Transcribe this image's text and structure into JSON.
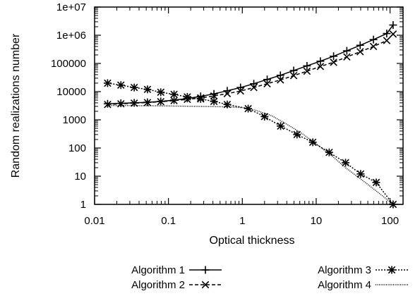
{
  "chart_data": {
    "type": "line",
    "xscale": "log",
    "yscale": "log",
    "xlim": [
      0.01,
      150
    ],
    "ylim": [
      1,
      10000000
    ],
    "xlabel": "Optical thickness",
    "ylabel": "Random realizations number",
    "grid": false,
    "legend_position": "bottom",
    "xticks": [
      {
        "value": 0.01,
        "label": "0.01"
      },
      {
        "value": 0.1,
        "label": "0.1"
      },
      {
        "value": 1,
        "label": "1"
      },
      {
        "value": 10,
        "label": "10"
      },
      {
        "value": 100,
        "label": "100"
      }
    ],
    "yticks": [
      {
        "value": 1,
        "label": "1"
      },
      {
        "value": 10,
        "label": "10"
      },
      {
        "value": 100,
        "label": "100"
      },
      {
        "value": 1000,
        "label": "1000"
      },
      {
        "value": 10000,
        "label": "10000"
      },
      {
        "value": 100000,
        "label": "100000"
      },
      {
        "value": 1000000,
        "label": "1e+06"
      },
      {
        "value": 10000000,
        "label": "1e+07"
      }
    ],
    "series": [
      {
        "name": "Algorithm 1",
        "line": "solid",
        "marker": "plus",
        "x": [
          0.015,
          0.0227,
          0.0344,
          0.052,
          0.0787,
          0.119,
          0.18,
          0.273,
          0.413,
          0.625,
          0.946,
          1.43,
          2.17,
          3.28,
          4.96,
          7.51,
          11.4,
          17.2,
          26.0,
          39.4,
          59.6,
          90.2,
          110
        ],
        "y": [
          3700,
          3850,
          4000,
          4200,
          4500,
          5000,
          5700,
          6800,
          8300,
          10700,
          14000,
          19000,
          27000,
          38000,
          56000,
          82000,
          120000,
          180000,
          280000,
          440000,
          700000,
          1150000,
          2300000
        ]
      },
      {
        "name": "Algorithm 2",
        "line": "dashed",
        "marker": "x",
        "x": [
          0.015,
          0.0227,
          0.0344,
          0.052,
          0.0787,
          0.119,
          0.18,
          0.273,
          0.413,
          0.625,
          0.946,
          1.43,
          2.17,
          3.28,
          4.96,
          7.51,
          11.4,
          17.2,
          26.0,
          39.4,
          59.6,
          90.2,
          110
        ],
        "y": [
          3500,
          3700,
          3900,
          4100,
          4400,
          4800,
          5300,
          6000,
          7000,
          8500,
          10500,
          14000,
          19000,
          26000,
          37000,
          53000,
          78000,
          110000,
          170000,
          260000,
          400000,
          650000,
          1100000
        ]
      },
      {
        "name": "Algorithm 3",
        "line": "dotted",
        "marker": "star",
        "x": [
          0.015,
          0.0227,
          0.0344,
          0.052,
          0.0787,
          0.119,
          0.18,
          0.273,
          0.413,
          0.625,
          1.2,
          2.0,
          3.3,
          5.5,
          9.0,
          15.0,
          25.0,
          40.0,
          65.0,
          110
        ],
        "y": [
          20000,
          17000,
          14000,
          12000,
          9500,
          8000,
          6500,
          5500,
          4500,
          3500,
          2500,
          1300,
          600,
          300,
          160,
          70,
          30,
          12,
          6,
          1
        ]
      },
      {
        "name": "Algorithm 4",
        "line": "fine-dotted",
        "marker": "none",
        "x": [
          0.015,
          0.03,
          0.06,
          0.1,
          0.2,
          0.35,
          0.6,
          1.0,
          1.5,
          2.5,
          4.0,
          6.5,
          10.0,
          16.0,
          25.0,
          40.0,
          65.0,
          110
        ],
        "y": [
          3200,
          3200,
          3150,
          3100,
          3000,
          2950,
          2900,
          2700,
          2200,
          1400,
          700,
          320,
          140,
          55,
          20,
          8,
          3,
          1
        ]
      }
    ]
  }
}
